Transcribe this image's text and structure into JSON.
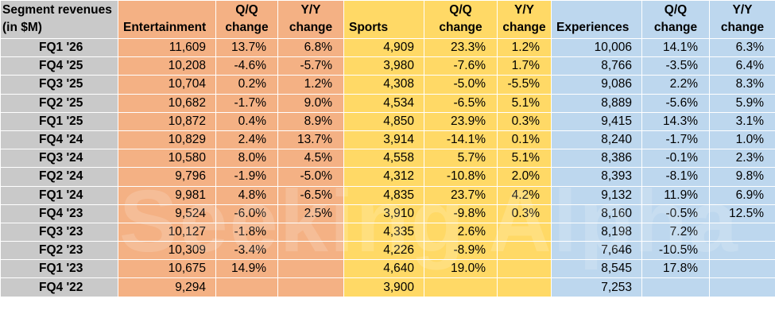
{
  "header": {
    "label_line1": "Segment revenues",
    "label_line2": "(in $M)",
    "entertainment": "Entertainment",
    "sports": "Sports",
    "experiences": "Experiences",
    "qq_line1": "Q/Q",
    "qq_line2": "change",
    "yy_line1": "Y/Y",
    "yy_line2": "change"
  },
  "watermark": "Seeking Alpha",
  "colors": {
    "label_column": "#c9c9c9",
    "entertainment": "#f4b184",
    "sports": "#ffd966",
    "experiences": "#bdd7ee"
  },
  "rows": [
    {
      "period": "FQ1 '26",
      "ent": "11,609",
      "ent_qq": "13.7%",
      "ent_yy": "6.8%",
      "spo": "4,909",
      "spo_qq": "23.3%",
      "spo_yy": "1.2%",
      "exp": "10,006",
      "exp_qq": "14.1%",
      "exp_yy": "6.3%"
    },
    {
      "period": "FQ4 '25",
      "ent": "10,208",
      "ent_qq": "-4.6%",
      "ent_yy": "-5.7%",
      "spo": "3,980",
      "spo_qq": "-7.6%",
      "spo_yy": "1.7%",
      "exp": "8,766",
      "exp_qq": "-3.5%",
      "exp_yy": "6.4%"
    },
    {
      "period": "FQ3 '25",
      "ent": "10,704",
      "ent_qq": "0.2%",
      "ent_yy": "1.2%",
      "spo": "4,308",
      "spo_qq": "-5.0%",
      "spo_yy": "-5.5%",
      "exp": "9,086",
      "exp_qq": "2.2%",
      "exp_yy": "8.3%"
    },
    {
      "period": "FQ2 '25",
      "ent": "10,682",
      "ent_qq": "-1.7%",
      "ent_yy": "9.0%",
      "spo": "4,534",
      "spo_qq": "-6.5%",
      "spo_yy": "5.1%",
      "exp": "8,889",
      "exp_qq": "-5.6%",
      "exp_yy": "5.9%"
    },
    {
      "period": "FQ1 '25",
      "ent": "10,872",
      "ent_qq": "0.4%",
      "ent_yy": "8.9%",
      "spo": "4,850",
      "spo_qq": "23.9%",
      "spo_yy": "0.3%",
      "exp": "9,415",
      "exp_qq": "14.3%",
      "exp_yy": "3.1%"
    },
    {
      "period": "FQ4 '24",
      "ent": "10,829",
      "ent_qq": "2.4%",
      "ent_yy": "13.7%",
      "spo": "3,914",
      "spo_qq": "-14.1%",
      "spo_yy": "0.1%",
      "exp": "8,240",
      "exp_qq": "-1.7%",
      "exp_yy": "1.0%"
    },
    {
      "period": "FQ3 '24",
      "ent": "10,580",
      "ent_qq": "8.0%",
      "ent_yy": "4.5%",
      "spo": "4,558",
      "spo_qq": "5.7%",
      "spo_yy": "5.1%",
      "exp": "8,386",
      "exp_qq": "-0.1%",
      "exp_yy": "2.3%"
    },
    {
      "period": "FQ2 '24",
      "ent": "9,796",
      "ent_qq": "-1.9%",
      "ent_yy": "-5.0%",
      "spo": "4,312",
      "spo_qq": "-10.8%",
      "spo_yy": "2.0%",
      "exp": "8,393",
      "exp_qq": "-8.1%",
      "exp_yy": "9.8%"
    },
    {
      "period": "FQ1 '24",
      "ent": "9,981",
      "ent_qq": "4.8%",
      "ent_yy": "-6.5%",
      "spo": "4,835",
      "spo_qq": "23.7%",
      "spo_yy": "4.2%",
      "exp": "9,132",
      "exp_qq": "11.9%",
      "exp_yy": "6.9%"
    },
    {
      "period": "FQ4 '23",
      "ent": "9,524",
      "ent_qq": "-6.0%",
      "ent_yy": "2.5%",
      "spo": "3,910",
      "spo_qq": "-9.8%",
      "spo_yy": "0.3%",
      "exp": "8,160",
      "exp_qq": "-0.5%",
      "exp_yy": "12.5%"
    },
    {
      "period": "FQ3 '23",
      "ent": "10,127",
      "ent_qq": "-1.8%",
      "ent_yy": "",
      "spo": "4,335",
      "spo_qq": "2.6%",
      "spo_yy": "",
      "exp": "8,198",
      "exp_qq": "7.2%",
      "exp_yy": ""
    },
    {
      "period": "FQ2 '23",
      "ent": "10,309",
      "ent_qq": "-3.4%",
      "ent_yy": "",
      "spo": "4,226",
      "spo_qq": "-8.9%",
      "spo_yy": "",
      "exp": "7,646",
      "exp_qq": "-10.5%",
      "exp_yy": ""
    },
    {
      "period": "FQ1 '23",
      "ent": "10,675",
      "ent_qq": "14.9%",
      "ent_yy": "",
      "spo": "4,640",
      "spo_qq": "19.0%",
      "spo_yy": "",
      "exp": "8,545",
      "exp_qq": "17.8%",
      "exp_yy": ""
    },
    {
      "period": "FQ4 '22",
      "ent": "9,294",
      "ent_qq": "",
      "ent_yy": "",
      "spo": "3,900",
      "spo_qq": "",
      "spo_yy": "",
      "exp": "7,253",
      "exp_qq": "",
      "exp_yy": ""
    }
  ]
}
